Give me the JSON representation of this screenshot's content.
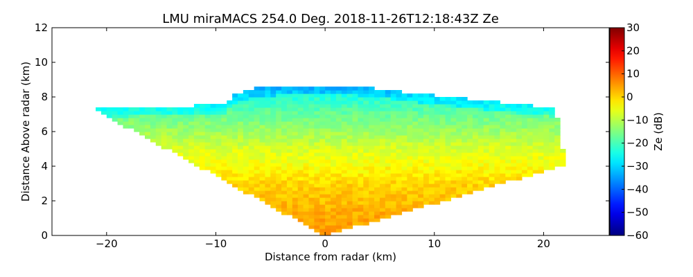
{
  "chart_data": {
    "type": "heatmap",
    "title": "LMU miraMACS 254.0 Deg. 2018-11-26T12:18:43Z  Ze",
    "xlabel": "Distance from radar (km)",
    "ylabel": "Distance Above radar  (km)",
    "xlim": [
      -25,
      26
    ],
    "ylim": [
      0,
      12
    ],
    "xticks": [
      -20,
      -10,
      0,
      10,
      20
    ],
    "xtick_labels": [
      "−20",
      "−10",
      "0",
      "10",
      "20"
    ],
    "yticks": [
      0,
      2,
      4,
      6,
      8,
      10,
      12
    ],
    "ytick_labels": [
      "0",
      "2",
      "4",
      "6",
      "8",
      "10",
      "12"
    ],
    "grid": false,
    "colorbar": {
      "label": "Ze (dB)",
      "colormap": "jet",
      "range": [
        -60,
        30
      ],
      "ticks": [
        -60,
        -50,
        -40,
        -30,
        -20,
        -10,
        0,
        10,
        20,
        30
      ],
      "tick_labels": [
        "−60",
        "−50",
        "−40",
        "−30",
        "−20",
        "−10",
        "0",
        "10",
        "20",
        "30"
      ]
    },
    "scan": {
      "elevation_edge_angles_deg": [
        161,
        10.5
      ],
      "max_range_km": 22.3,
      "cloud_top_km": [
        [
          -21,
          7.3
        ],
        [
          -18,
          7.4
        ],
        [
          -12,
          7.5
        ],
        [
          -9,
          7.6
        ],
        [
          -8.4,
          8.1
        ],
        [
          -6,
          8.55
        ],
        [
          -1,
          8.7
        ],
        [
          3,
          8.6
        ],
        [
          10,
          8.1
        ],
        [
          16,
          7.7
        ],
        [
          20.5,
          7.4
        ]
      ],
      "reflectivity_profile_dBZ": [
        [
          0,
          5
        ],
        [
          1,
          4
        ],
        [
          2,
          2
        ],
        [
          3,
          0
        ],
        [
          4,
          -4
        ],
        [
          5,
          -7
        ],
        [
          6,
          -12
        ],
        [
          7,
          -17
        ],
        [
          8,
          -23
        ],
        [
          8.7,
          -28
        ]
      ]
    }
  }
}
